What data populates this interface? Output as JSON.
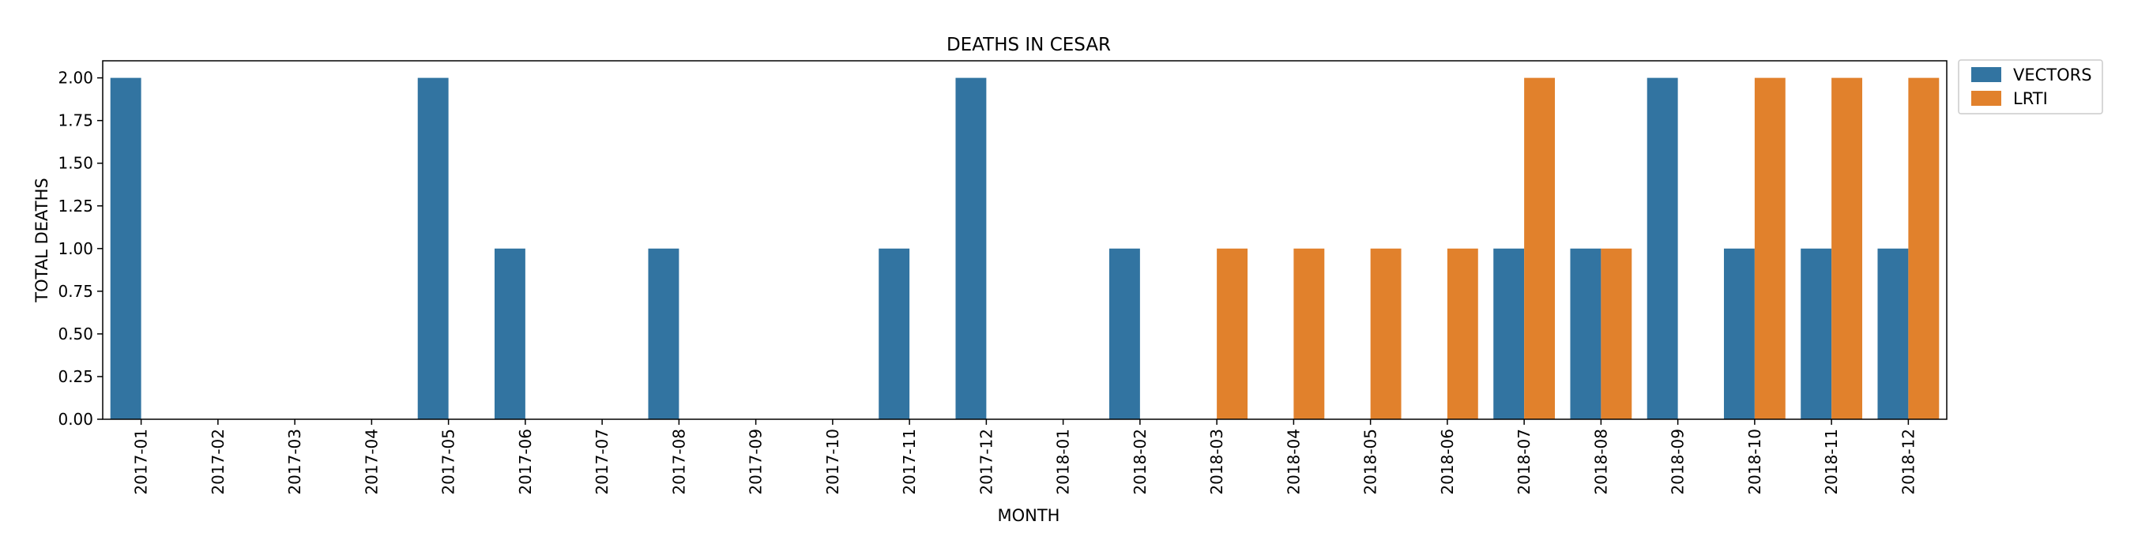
{
  "chart_data": {
    "type": "bar",
    "title": "DEATHS IN CESAR",
    "xlabel": "MONTH",
    "ylabel": "TOTAL DEATHS",
    "ylim": [
      0,
      2.1
    ],
    "yticks": [
      0.0,
      0.25,
      0.5,
      0.75,
      1.0,
      1.25,
      1.5,
      1.75,
      2.0
    ],
    "ytick_labels": [
      "0.00",
      "0.25",
      "0.50",
      "0.75",
      "1.00",
      "1.25",
      "1.50",
      "1.75",
      "2.00"
    ],
    "grid": false,
    "legend_position": "outside-top-right",
    "categories": [
      "2017-01",
      "2017-02",
      "2017-03",
      "2017-04",
      "2017-05",
      "2017-06",
      "2017-07",
      "2017-08",
      "2017-09",
      "2017-10",
      "2017-11",
      "2017-12",
      "2018-01",
      "2018-02",
      "2018-03",
      "2018-04",
      "2018-05",
      "2018-06",
      "2018-07",
      "2018-08",
      "2018-09",
      "2018-10",
      "2018-11",
      "2018-12"
    ],
    "series": [
      {
        "name": "VECTORS",
        "color": "#3274a1",
        "values": [
          2,
          0,
          0,
          0,
          2,
          1,
          0,
          1,
          0,
          0,
          1,
          2,
          0,
          1,
          0,
          0,
          0,
          0,
          1,
          1,
          2,
          1,
          1,
          1
        ]
      },
      {
        "name": "LRTI",
        "color": "#e1812c",
        "values": [
          0,
          0,
          0,
          0,
          0,
          0,
          0,
          0,
          0,
          0,
          0,
          0,
          0,
          0,
          1,
          1,
          1,
          1,
          2,
          1,
          0,
          2,
          2,
          2
        ]
      }
    ]
  }
}
